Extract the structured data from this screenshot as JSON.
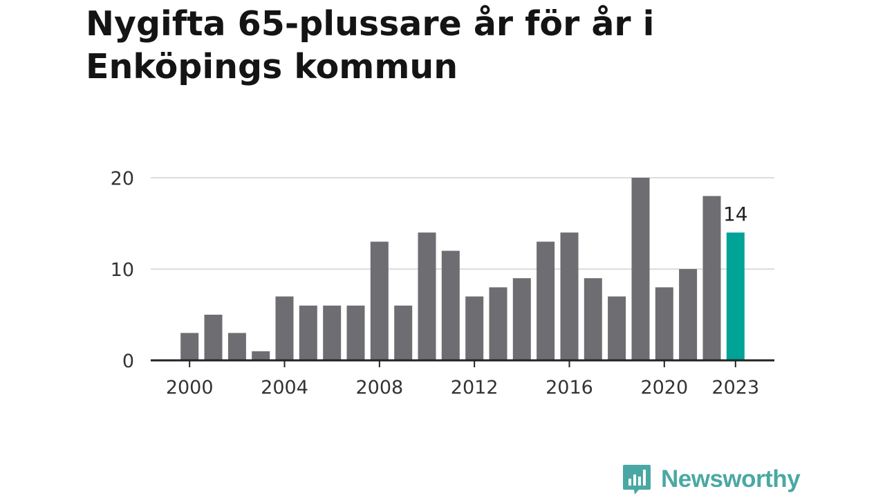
{
  "title": "Nygifta 65-plussare år för år i Enköpings kommun",
  "brand": {
    "name": "Newsworthy",
    "icon": "newsworthy-logo-icon",
    "color": "#4aa8a4"
  },
  "chart_data": {
    "type": "bar",
    "title": "Nygifta 65-plussare år för år i Enköpings kommun",
    "x": [
      2000,
      2001,
      2002,
      2003,
      2004,
      2005,
      2006,
      2007,
      2008,
      2009,
      2010,
      2011,
      2012,
      2013,
      2014,
      2015,
      2016,
      2017,
      2018,
      2019,
      2020,
      2021,
      2022,
      2023
    ],
    "values": [
      3,
      5,
      3,
      1,
      7,
      6,
      6,
      6,
      13,
      6,
      14,
      12,
      7,
      8,
      9,
      13,
      14,
      9,
      7,
      20,
      8,
      10,
      18,
      14
    ],
    "x_tick_labels": [
      "2000",
      "2004",
      "2008",
      "2012",
      "2016",
      "2020",
      "2023"
    ],
    "y_ticks": [
      0,
      10,
      20
    ],
    "ylim": [
      0,
      20
    ],
    "highlight": {
      "x": 2023,
      "label": "14"
    },
    "colors": {
      "bar": "#6e6d72",
      "highlight": "#00a396",
      "grid": "#dcdcdc",
      "axis": "#222222"
    },
    "grid": true,
    "xlabel": "",
    "ylabel": ""
  }
}
